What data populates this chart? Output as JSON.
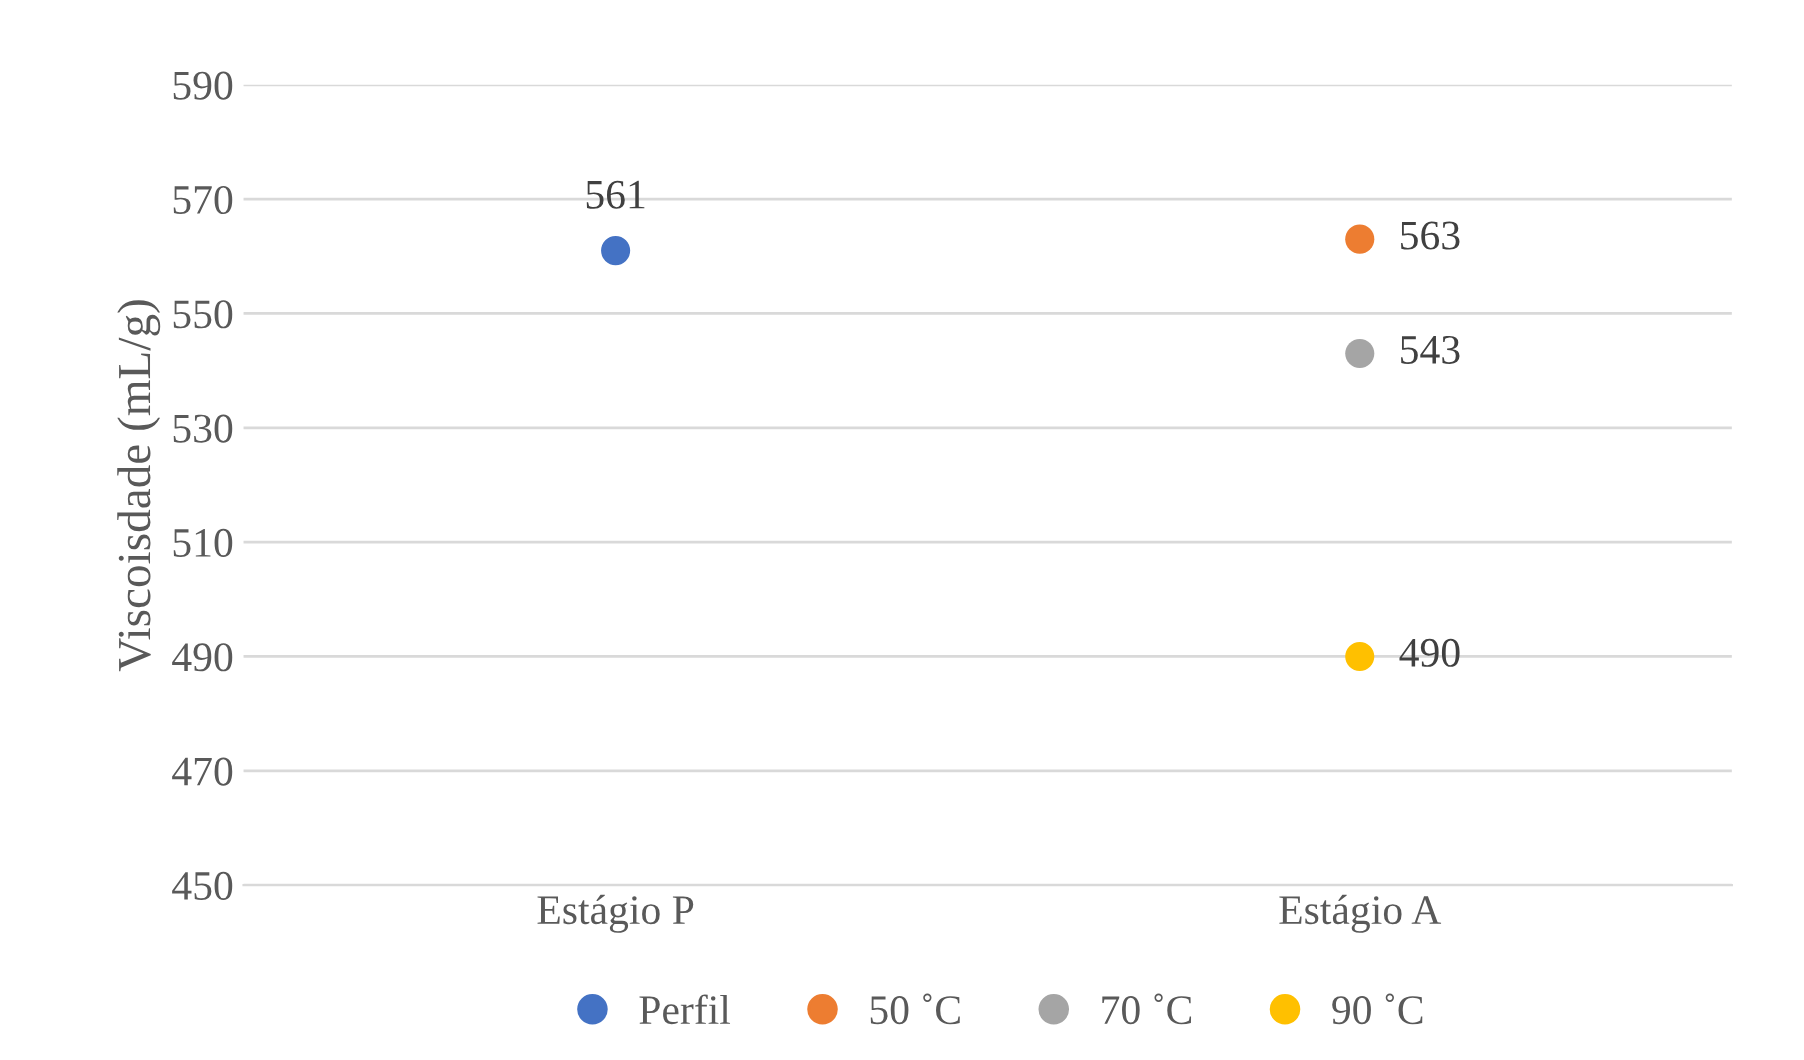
{
  "chart_data": {
    "type": "scatter",
    "ylabel": "Viscoisdade (mL/g)",
    "categories": [
      "Estágio P",
      "Estágio A"
    ],
    "series": [
      {
        "name": "Perfil",
        "color": "#4472c4",
        "values": [
          561,
          null
        ]
      },
      {
        "name": "50 ˚C",
        "color": "#ed7d31",
        "values": [
          null,
          563
        ]
      },
      {
        "name": "70 ˚C",
        "color": "#a5a5a5",
        "values": [
          null,
          543
        ]
      },
      {
        "name": "90 ˚C",
        "color": "#ffc000",
        "values": [
          null,
          490
        ]
      }
    ],
    "ylim": [
      450,
      590
    ],
    "yticks": [
      450,
      470,
      490,
      510,
      530,
      550,
      570,
      590
    ],
    "grid": "y",
    "legend": "bottom",
    "marker": "circle",
    "data_labels": true
  }
}
